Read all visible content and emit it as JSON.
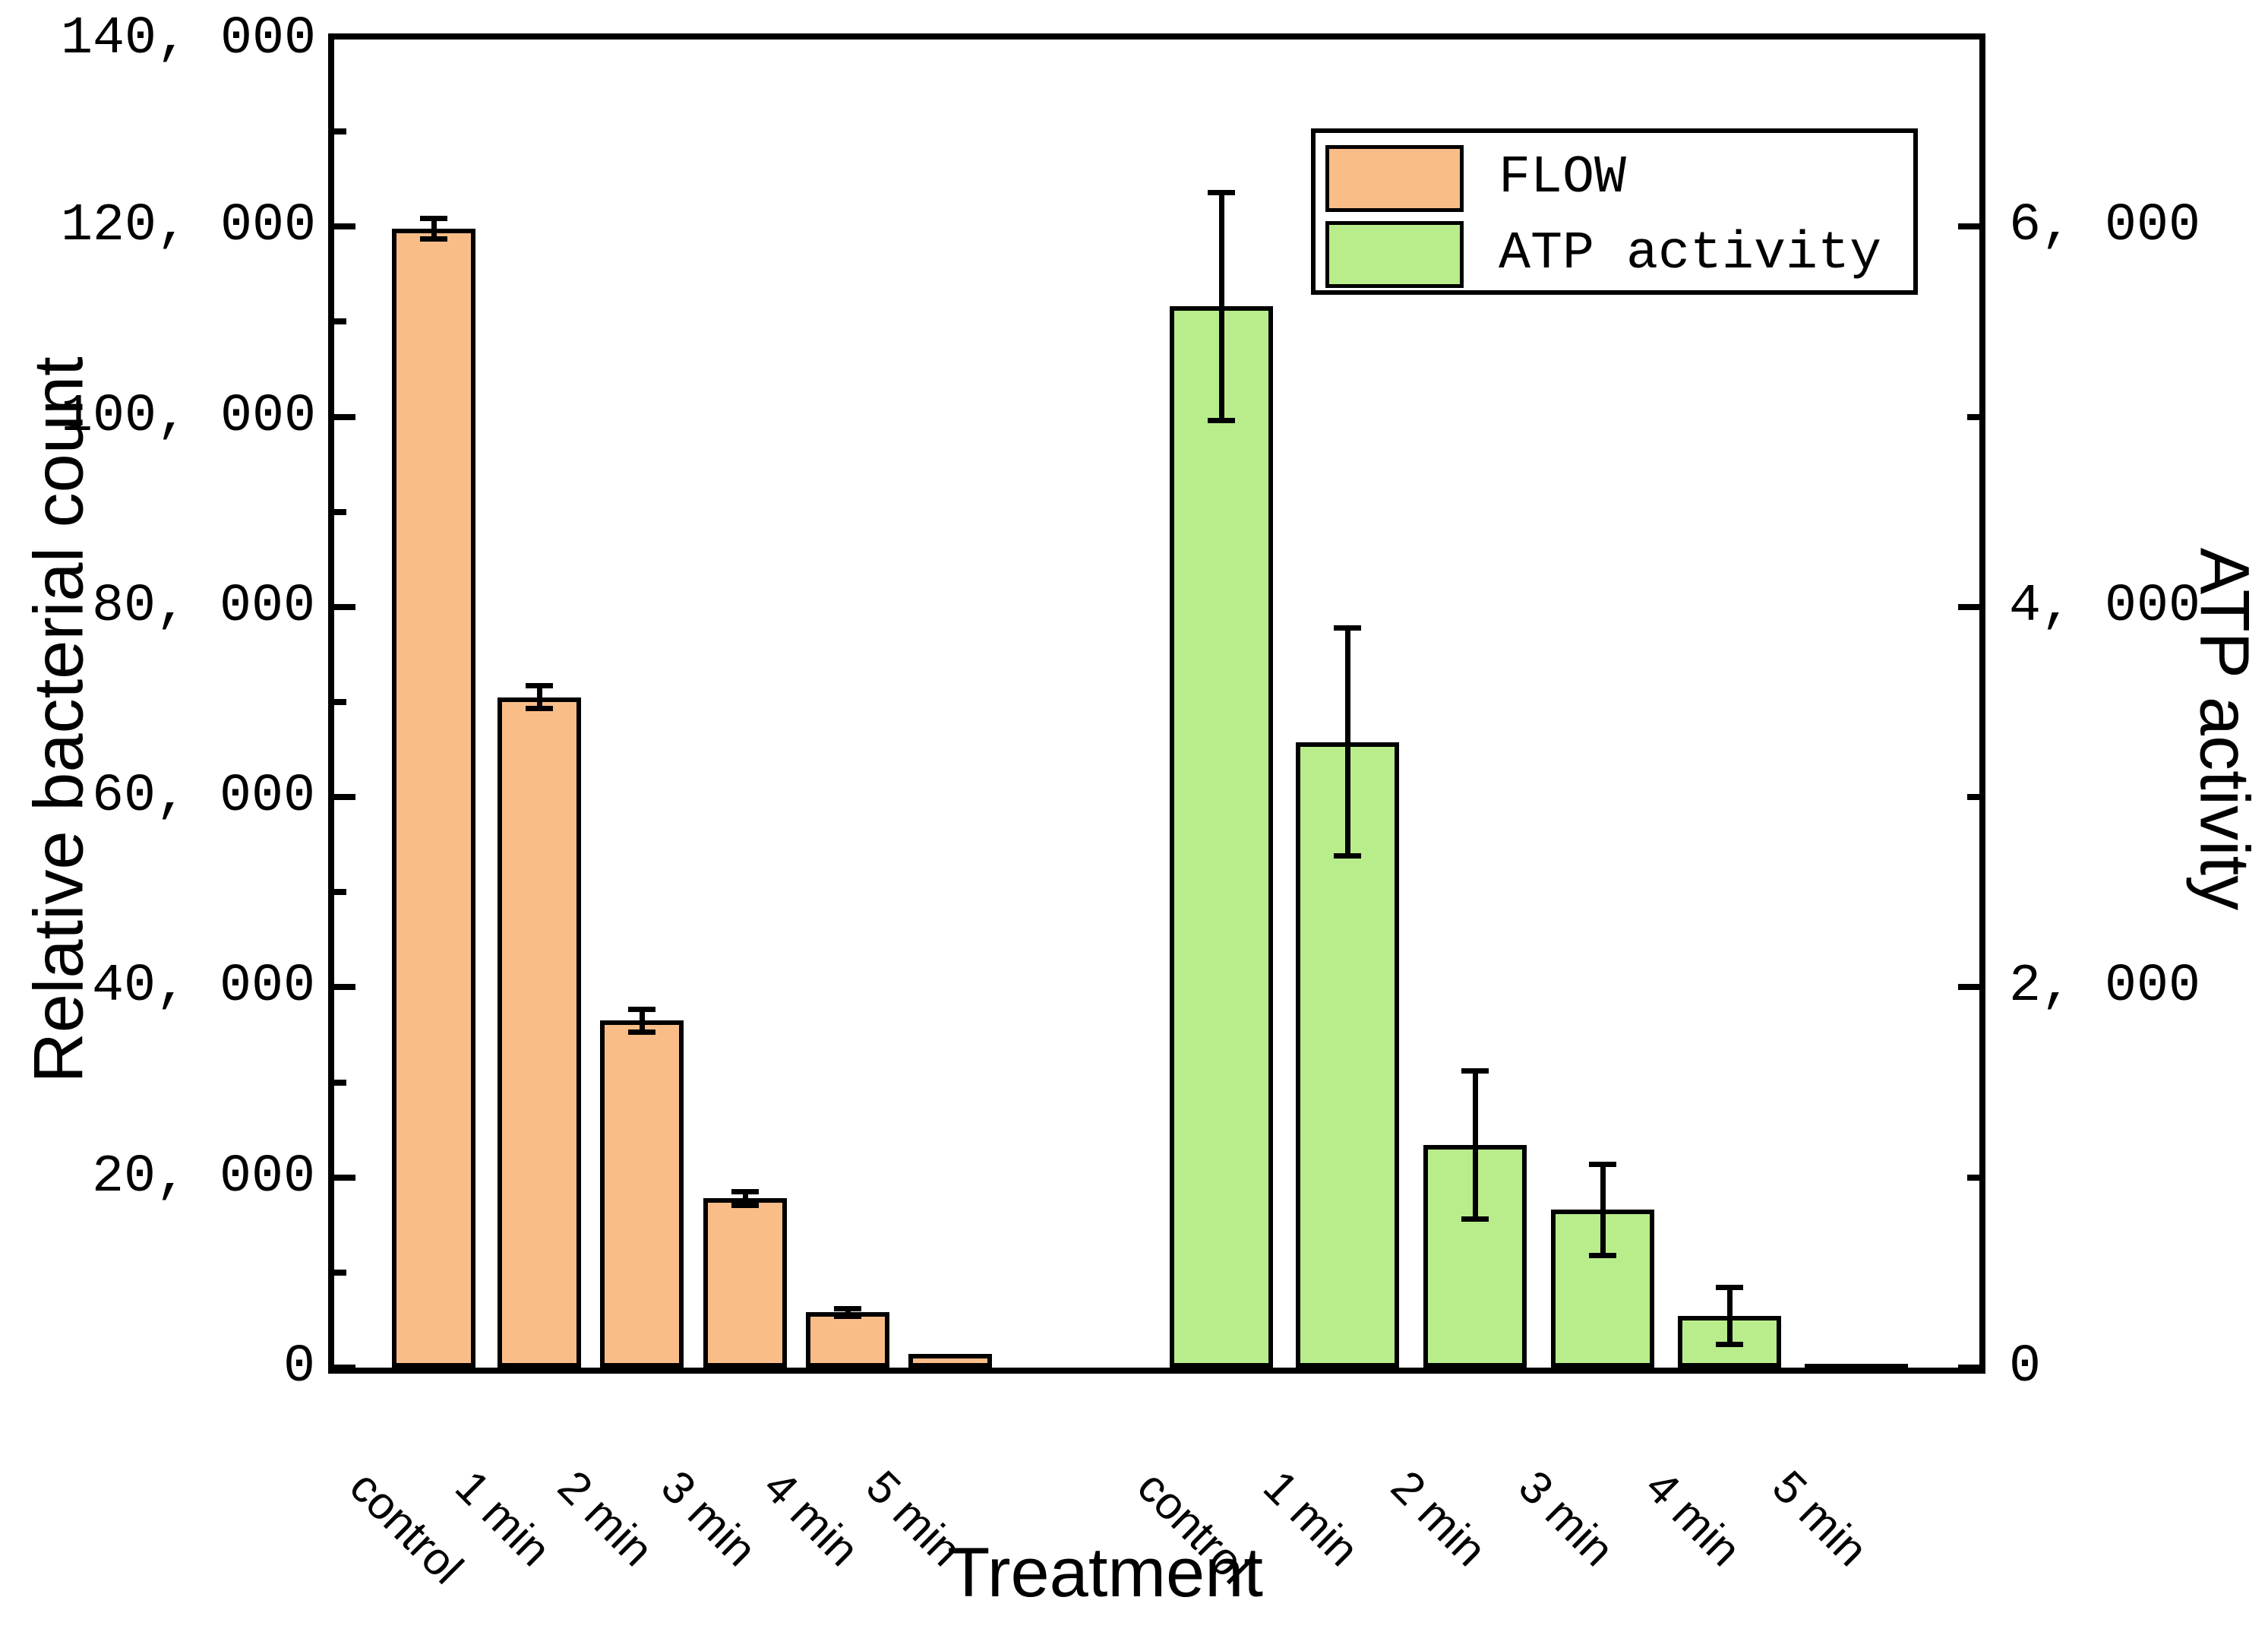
{
  "axes": {
    "x": {
      "title": "Treatment",
      "categories": [
        "control",
        "1 min",
        "2 min",
        "3 min",
        "4 min",
        "5 min"
      ]
    },
    "y_left": {
      "title": "Relative bacterial count",
      "min": 0,
      "max": 140000,
      "major_step": 20000,
      "minor_step": 10000,
      "tick_labels": [
        "0",
        "20, 000",
        "40, 000",
        "60, 000",
        "80, 000",
        "100, 000",
        "120, 000",
        "140, 000"
      ]
    },
    "y_right": {
      "title": "ATP activity",
      "min": 0,
      "max": 7000,
      "major_step": 2000,
      "minor_step": 1000,
      "tick_labels": [
        "0",
        "2, 000",
        "4, 000",
        "6, 000"
      ]
    }
  },
  "legend": {
    "entries": [
      {
        "label": "FLOW",
        "color": "#FBBD88"
      },
      {
        "label": "ATP activity",
        "color": "#B9ED8C"
      }
    ]
  },
  "colors": {
    "flow_bar": "#FBBD88",
    "atp_bar": "#B9ED8C",
    "outline": "#000000",
    "background": "#FFFFFF"
  },
  "chart_data": {
    "type": "bar",
    "categories": [
      "control",
      "1 min",
      "2 min",
      "3 min",
      "4 min",
      "5 min"
    ],
    "series": [
      {
        "name": "FLOW",
        "axis": "left",
        "color": "#FBBD88",
        "values": [
          119800,
          70500,
          36500,
          17800,
          5800,
          1400
        ],
        "errors": [
          1100,
          1200,
          1200,
          700,
          400,
          100
        ]
      },
      {
        "name": "ATP activity",
        "axis": "right",
        "color": "#B9ED8C",
        "values": [
          5580,
          3290,
          1170,
          830,
          270,
          20
        ],
        "errors": [
          600,
          600,
          390,
          240,
          150,
          10
        ]
      }
    ],
    "title": "",
    "xlabel": "Treatment",
    "ylabel_left": "Relative bacterial count",
    "ylabel_right": "ATP activity",
    "ylim_left": [
      0,
      140000
    ],
    "ylim_right": [
      0,
      7000
    ],
    "grid": false,
    "legend_position": "upper-right-inside"
  }
}
